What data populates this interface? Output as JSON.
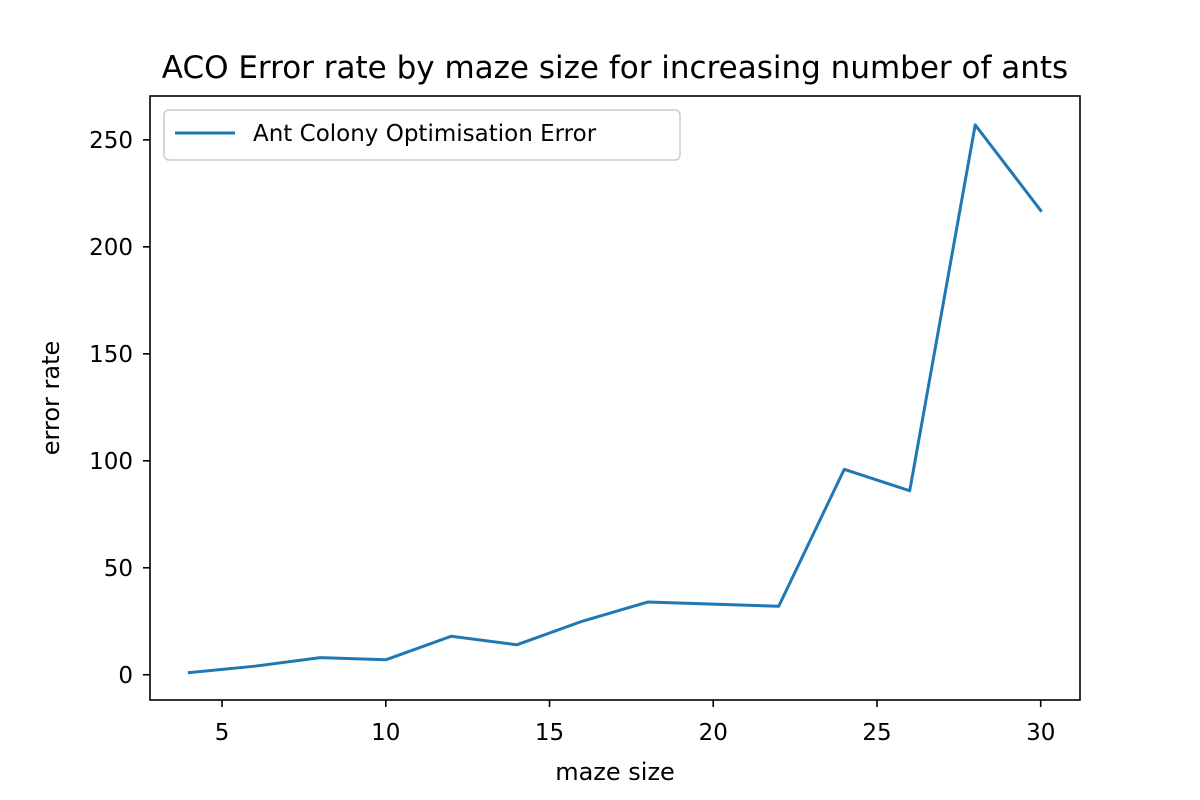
{
  "chart_data": {
    "type": "line",
    "title": "ACO Error rate by maze size for increasing number of ants",
    "xlabel": "maze size",
    "ylabel": "error rate",
    "xlim": [
      2.8,
      31.2
    ],
    "ylim": [
      -11.8,
      270.5
    ],
    "xticks": [
      5,
      10,
      15,
      20,
      25,
      30
    ],
    "yticks": [
      0,
      50,
      100,
      150,
      200,
      250
    ],
    "grid": false,
    "legend_position": "upper left",
    "series": [
      {
        "name": "Ant Colony Optimisation Error",
        "color": "#1f77b4",
        "x": [
          4,
          6,
          8,
          10,
          12,
          14,
          16,
          18,
          20,
          22,
          24,
          26,
          28,
          30
        ],
        "y": [
          1,
          4,
          8,
          7,
          18,
          14,
          25,
          34,
          33,
          32,
          96,
          86,
          257,
          217
        ]
      }
    ]
  }
}
